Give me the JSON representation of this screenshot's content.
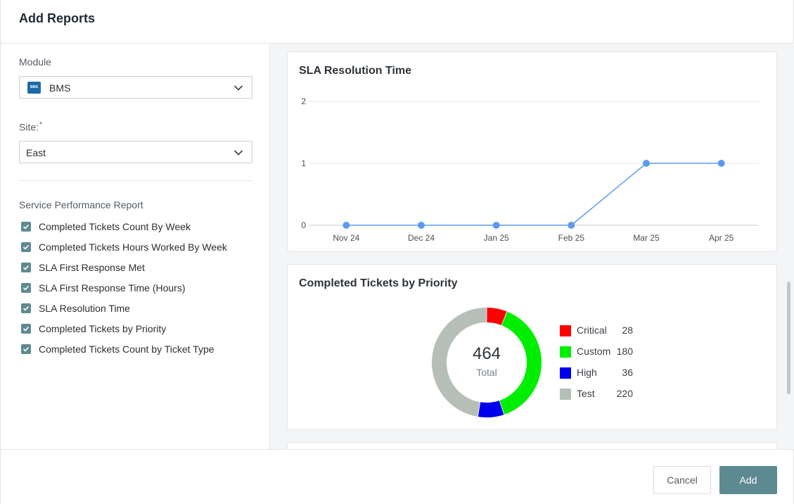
{
  "dialog": {
    "title": "Add Reports"
  },
  "module": {
    "label": "Module",
    "value": "BMS",
    "logo_text": "BMS"
  },
  "site": {
    "label": "Site:",
    "required_mark": "*",
    "value": "East"
  },
  "report_section": {
    "title": "Service Performance Report",
    "items": [
      {
        "label": "Completed Tickets Count By Week",
        "checked": true
      },
      {
        "label": "Completed Tickets Hours Worked By Week",
        "checked": true
      },
      {
        "label": "SLA First Response Met",
        "checked": true
      },
      {
        "label": "SLA First Response Time (Hours)",
        "checked": true
      },
      {
        "label": "SLA Resolution Time",
        "checked": true
      },
      {
        "label": "Completed Tickets by Priority",
        "checked": true
      },
      {
        "label": "Completed Tickets Count by Ticket Type",
        "checked": true
      }
    ]
  },
  "chart_data": [
    {
      "type": "line",
      "title": "SLA Resolution Time",
      "categories": [
        "Nov 24",
        "Dec 24",
        "Jan 25",
        "Feb 25",
        "Mar 25",
        "Apr 25"
      ],
      "series": [
        {
          "values": [
            0,
            0,
            0,
            0,
            1,
            1
          ]
        }
      ],
      "yticks": [
        "0",
        "1",
        "2"
      ],
      "ylim": [
        0,
        2
      ],
      "grid": true,
      "color": "#5b9bef"
    },
    {
      "type": "pie",
      "title": "Completed Tickets by Priority",
      "center_value": "464",
      "center_label": "Total",
      "slices": [
        {
          "label": "Critical",
          "value": 28,
          "display": "28",
          "color": "#ff0000"
        },
        {
          "label": "Custom",
          "value": 180,
          "display": "180",
          "color": "#00ee00"
        },
        {
          "label": "High",
          "value": 36,
          "display": "36",
          "color": "#0000ee"
        },
        {
          "label": "Test",
          "value": 220,
          "display": "220",
          "color": "#b6bfb7"
        }
      ],
      "legend": "right"
    }
  ],
  "footer": {
    "cancel_label": "Cancel",
    "add_label": "Add"
  },
  "colors": {
    "accent": "#5d8a91",
    "line": "#5b9bef"
  }
}
